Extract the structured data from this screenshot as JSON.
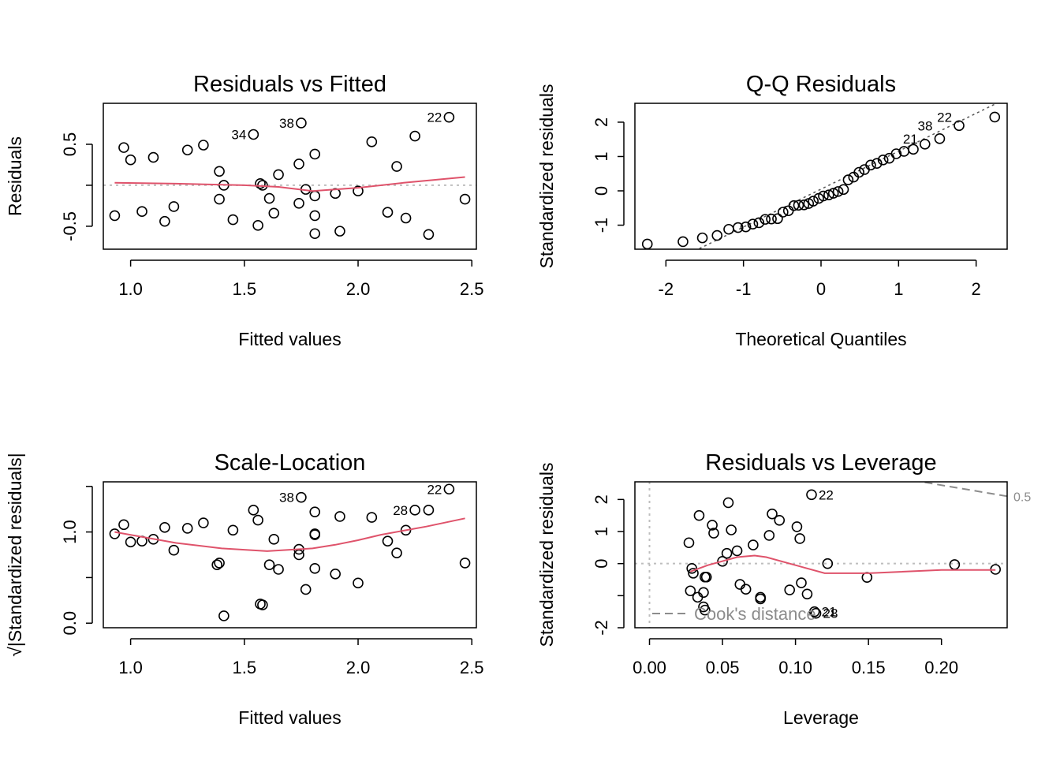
{
  "colors": {
    "smooth": "#DF536B",
    "reference_dotted": "#BEBEBE",
    "qq_line": "#555555",
    "cooks": "#8C8C8C",
    "points": "#000000"
  },
  "chart_data": [
    {
      "type": "scatter",
      "title": "Residuals vs Fitted",
      "xlabel": "Fitted values",
      "ylabel": "Residuals",
      "xlim": [
        0.88,
        2.52
      ],
      "ylim": [
        -0.78,
        1.0
      ],
      "xticks": [
        1.0,
        1.5,
        2.0,
        2.5
      ],
      "xtick_labels": [
        "1.0",
        "1.5",
        "2.0",
        "2.5"
      ],
      "yticks": [
        -0.5,
        0.0,
        0.5
      ],
      "ytick_labels": [
        "-0.5",
        "",
        "0.5"
      ],
      "points": [
        [
          0.93,
          -0.37
        ],
        [
          0.97,
          0.46
        ],
        [
          1.0,
          0.31
        ],
        [
          1.05,
          -0.32
        ],
        [
          1.1,
          0.34
        ],
        [
          1.15,
          -0.44
        ],
        [
          1.19,
          -0.26
        ],
        [
          1.25,
          0.43
        ],
        [
          1.32,
          0.49
        ],
        [
          1.39,
          0.17
        ],
        [
          1.39,
          -0.17
        ],
        [
          1.41,
          0.0
        ],
        [
          1.45,
          -0.42
        ],
        [
          1.54,
          0.62
        ],
        [
          1.56,
          -0.49
        ],
        [
          1.57,
          0.02
        ],
        [
          1.58,
          0.0
        ],
        [
          1.61,
          -0.16
        ],
        [
          1.63,
          -0.34
        ],
        [
          1.65,
          0.13
        ],
        [
          1.74,
          0.26
        ],
        [
          1.74,
          -0.22
        ],
        [
          1.75,
          0.76
        ],
        [
          1.77,
          -0.05
        ],
        [
          1.81,
          0.38
        ],
        [
          1.81,
          -0.13
        ],
        [
          1.81,
          -0.37
        ],
        [
          1.81,
          -0.59
        ],
        [
          1.9,
          -0.1
        ],
        [
          1.92,
          -0.56
        ],
        [
          2.0,
          -0.07
        ],
        [
          2.06,
          0.53
        ],
        [
          2.13,
          -0.33
        ],
        [
          2.17,
          0.23
        ],
        [
          2.21,
          -0.4
        ],
        [
          2.25,
          0.6
        ],
        [
          2.31,
          -0.6
        ],
        [
          2.4,
          0.83
        ],
        [
          2.47,
          -0.17
        ]
      ],
      "smooth": [
        [
          0.93,
          0.03
        ],
        [
          1.2,
          0.02
        ],
        [
          1.5,
          0.0
        ],
        [
          1.65,
          -0.02
        ],
        [
          1.8,
          -0.07
        ],
        [
          2.0,
          -0.03
        ],
        [
          2.2,
          0.03
        ],
        [
          2.47,
          0.1
        ]
      ],
      "hline": 0,
      "point_labels": [
        {
          "text": "34",
          "x": 1.54,
          "y": 0.62
        },
        {
          "text": "38",
          "x": 1.75,
          "y": 0.76
        },
        {
          "text": "22",
          "x": 2.4,
          "y": 0.83
        }
      ]
    },
    {
      "type": "scatter",
      "title": "Q-Q Residuals",
      "xlabel": "Theoretical Quantiles",
      "ylabel": "Standardized residuals",
      "xlim": [
        -2.4,
        2.4
      ],
      "ylim": [
        -1.7,
        2.55
      ],
      "xticks": [
        -2,
        -1,
        0,
        1,
        2
      ],
      "xtick_labels": [
        "-2",
        "-1",
        "0",
        "1",
        "2"
      ],
      "yticks": [
        -1,
        0,
        1,
        2
      ],
      "ytick_labels": [
        "-1",
        "0",
        "1",
        "2"
      ],
      "points": [
        [
          -2.24,
          -1.55
        ],
        [
          -1.78,
          -1.48
        ],
        [
          -1.53,
          -1.37
        ],
        [
          -1.34,
          -1.3
        ],
        [
          -1.19,
          -1.12
        ],
        [
          -1.07,
          -1.07
        ],
        [
          -0.97,
          -1.05
        ],
        [
          -0.88,
          -0.97
        ],
        [
          -0.8,
          -0.93
        ],
        [
          -0.72,
          -0.83
        ],
        [
          -0.64,
          -0.82
        ],
        [
          -0.56,
          -0.81
        ],
        [
          -0.49,
          -0.62
        ],
        [
          -0.42,
          -0.58
        ],
        [
          -0.35,
          -0.43
        ],
        [
          -0.29,
          -0.42
        ],
        [
          -0.22,
          -0.41
        ],
        [
          -0.16,
          -0.37
        ],
        [
          -0.1,
          -0.3
        ],
        [
          -0.03,
          -0.22
        ],
        [
          0.03,
          -0.15
        ],
        [
          0.1,
          -0.12
        ],
        [
          0.16,
          -0.07
        ],
        [
          0.22,
          -0.02
        ],
        [
          0.29,
          0.04
        ],
        [
          0.35,
          0.32
        ],
        [
          0.42,
          0.4
        ],
        [
          0.49,
          0.54
        ],
        [
          0.56,
          0.62
        ],
        [
          0.64,
          0.75
        ],
        [
          0.72,
          0.8
        ],
        [
          0.8,
          0.9
        ],
        [
          0.88,
          0.95
        ],
        [
          0.97,
          1.08
        ],
        [
          1.07,
          1.15
        ],
        [
          1.19,
          1.21
        ],
        [
          1.34,
          1.36
        ],
        [
          1.53,
          1.52
        ],
        [
          1.78,
          1.9
        ],
        [
          2.24,
          2.15
        ]
      ],
      "qq_line": [
        [
          -2.4,
          -2.6
        ],
        [
          2.4,
          2.7
        ]
      ],
      "point_labels": [
        {
          "text": "21",
          "x": 1.34,
          "y": 1.52
        },
        {
          "text": "38",
          "x": 1.53,
          "y": 1.9
        },
        {
          "text": "22",
          "x": 1.78,
          "y": 2.15
        }
      ]
    },
    {
      "type": "scatter",
      "title": "Scale-Location",
      "xlabel": "Fitted values",
      "ylabel": "√|Standardized residuals|",
      "xlim": [
        0.88,
        2.52
      ],
      "ylim": [
        -0.05,
        1.55
      ],
      "xticks": [
        1.0,
        1.5,
        2.0,
        2.5
      ],
      "xtick_labels": [
        "1.0",
        "1.5",
        "2.0",
        "2.5"
      ],
      "yticks": [
        0.0,
        0.5,
        1.0,
        1.5
      ],
      "ytick_labels": [
        "0.0",
        "",
        "1.0",
        ""
      ],
      "points": [
        [
          0.93,
          0.98
        ],
        [
          0.97,
          1.08
        ],
        [
          1.0,
          0.89
        ],
        [
          1.05,
          0.9
        ],
        [
          1.1,
          0.92
        ],
        [
          1.15,
          1.05
        ],
        [
          1.19,
          0.8
        ],
        [
          1.25,
          1.04
        ],
        [
          1.32,
          1.1
        ],
        [
          1.38,
          0.64
        ],
        [
          1.39,
          0.66
        ],
        [
          1.41,
          0.08
        ],
        [
          1.45,
          1.02
        ],
        [
          1.54,
          1.24
        ],
        [
          1.56,
          1.13
        ],
        [
          1.57,
          0.21
        ],
        [
          1.58,
          0.2
        ],
        [
          1.61,
          0.64
        ],
        [
          1.63,
          0.92
        ],
        [
          1.65,
          0.59
        ],
        [
          1.74,
          0.81
        ],
        [
          1.74,
          0.75
        ],
        [
          1.75,
          1.38
        ],
        [
          1.77,
          0.37
        ],
        [
          1.81,
          0.97
        ],
        [
          1.81,
          0.98
        ],
        [
          1.81,
          0.6
        ],
        [
          1.81,
          1.22
        ],
        [
          1.9,
          0.54
        ],
        [
          1.92,
          1.17
        ],
        [
          2.0,
          0.44
        ],
        [
          2.06,
          1.16
        ],
        [
          2.13,
          0.9
        ],
        [
          2.17,
          0.77
        ],
        [
          2.21,
          1.02
        ],
        [
          2.25,
          1.24
        ],
        [
          2.31,
          1.24
        ],
        [
          2.4,
          1.47
        ],
        [
          2.47,
          0.66
        ]
      ],
      "smooth": [
        [
          0.93,
          1.0
        ],
        [
          1.2,
          0.88
        ],
        [
          1.4,
          0.82
        ],
        [
          1.6,
          0.79
        ],
        [
          1.8,
          0.82
        ],
        [
          1.9,
          0.86
        ],
        [
          2.0,
          0.91
        ],
        [
          2.1,
          0.97
        ],
        [
          2.3,
          1.06
        ],
        [
          2.47,
          1.15
        ]
      ],
      "point_labels": [
        {
          "text": "38",
          "x": 1.75,
          "y": 1.38
        },
        {
          "text": "28",
          "x": 2.25,
          "y": 1.24
        },
        {
          "text": "22",
          "x": 2.4,
          "y": 1.47
        }
      ]
    },
    {
      "type": "scatter",
      "title": "Residuals vs Leverage",
      "xlabel": "Leverage",
      "ylabel": "Standardized residuals",
      "xlim": [
        -0.01,
        0.245
      ],
      "ylim": [
        -2.0,
        2.55
      ],
      "xticks": [
        0.0,
        0.05,
        0.1,
        0.15,
        0.2
      ],
      "xtick_labels": [
        "0.00",
        "0.05",
        "0.10",
        "0.15",
        "0.20"
      ],
      "yticks": [
        -2,
        -1,
        0,
        1,
        2
      ],
      "ytick_labels": [
        "-2",
        "",
        "0",
        "1",
        "2"
      ],
      "points": [
        [
          0.027,
          0.65
        ],
        [
          0.028,
          -0.85
        ],
        [
          0.029,
          -0.15
        ],
        [
          0.03,
          -0.3
        ],
        [
          0.033,
          -1.05
        ],
        [
          0.034,
          1.5
        ],
        [
          0.037,
          -0.9
        ],
        [
          0.037,
          -1.35
        ],
        [
          0.038,
          -1.45
        ],
        [
          0.038,
          -0.42
        ],
        [
          0.039,
          -0.42
        ],
        [
          0.043,
          1.2
        ],
        [
          0.044,
          0.95
        ],
        [
          0.05,
          0.07
        ],
        [
          0.053,
          0.32
        ],
        [
          0.054,
          1.9
        ],
        [
          0.056,
          1.05
        ],
        [
          0.06,
          0.4
        ],
        [
          0.062,
          -0.65
        ],
        [
          0.066,
          -0.8
        ],
        [
          0.071,
          0.58
        ],
        [
          0.076,
          -1.1
        ],
        [
          0.076,
          -1.05
        ],
        [
          0.082,
          0.88
        ],
        [
          0.084,
          1.55
        ],
        [
          0.089,
          1.35
        ],
        [
          0.096,
          -0.82
        ],
        [
          0.101,
          1.15
        ],
        [
          0.103,
          0.78
        ],
        [
          0.104,
          -0.6
        ],
        [
          0.108,
          -0.95
        ],
        [
          0.111,
          2.15
        ],
        [
          0.113,
          -1.5
        ],
        [
          0.114,
          -1.55
        ],
        [
          0.122,
          0.0
        ],
        [
          0.149,
          -0.43
        ],
        [
          0.209,
          -0.03
        ],
        [
          0.237,
          -0.18
        ]
      ],
      "smooth": [
        [
          0.028,
          -0.25
        ],
        [
          0.04,
          -0.05
        ],
        [
          0.06,
          0.2
        ],
        [
          0.072,
          0.25
        ],
        [
          0.08,
          0.2
        ],
        [
          0.1,
          -0.05
        ],
        [
          0.12,
          -0.3
        ],
        [
          0.15,
          -0.3
        ],
        [
          0.2,
          -0.2
        ],
        [
          0.237,
          -0.2
        ]
      ],
      "hline": 0,
      "vline": 0,
      "cooks_line": [
        [
          0.18,
          2.6
        ],
        [
          0.245,
          2.1
        ]
      ],
      "cooks_label": "0.5",
      "legend": "Cook's distance",
      "point_labels": [
        {
          "text": "22",
          "x": 0.111,
          "y": 2.15
        },
        {
          "text": "21",
          "x": 0.113,
          "y": -1.5
        },
        {
          "text": "28",
          "x": 0.114,
          "y": -1.55
        }
      ]
    }
  ]
}
